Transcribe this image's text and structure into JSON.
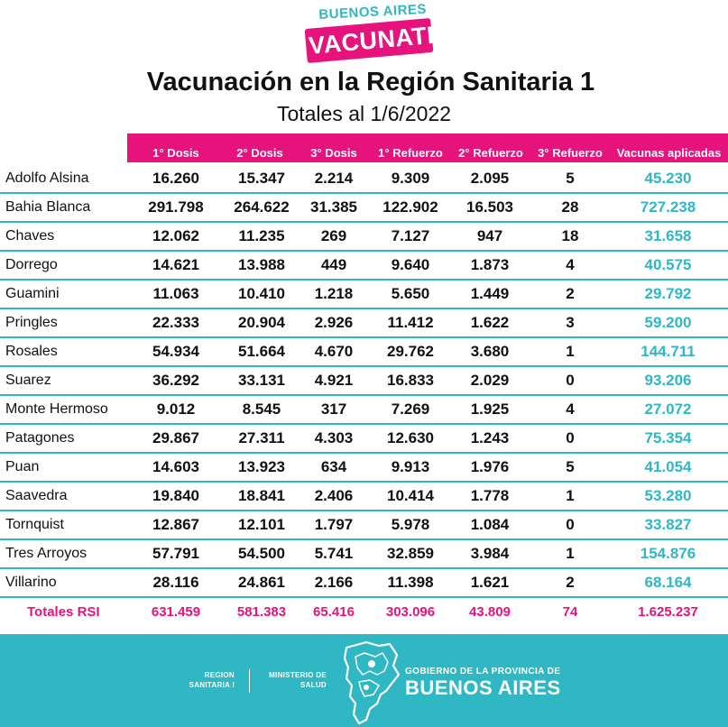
{
  "logo": {
    "top": "BUENOS AIRES",
    "main": "VACUNATE"
  },
  "title": "Vacunación en la Región Sanitaria 1",
  "subtitle": "Totales al  1/6/2022",
  "colors": {
    "accent_pink": "#e6137c",
    "accent_teal": "#2fb7c3"
  },
  "table": {
    "headers": [
      "1° Dosis",
      "2° Dosis",
      "3° Dosis",
      "1° Refuerzo",
      "2° Refuerzo",
      "3° Refuerzo",
      "Vacunas aplicadas"
    ],
    "rows": [
      {
        "name": "Adolfo Alsina",
        "d1": "16.260",
        "d2": "15.347",
        "d3": "2.214",
        "r1": "9.309",
        "r2": "2.095",
        "r3": "5",
        "total": "45.230"
      },
      {
        "name": "Bahia Blanca",
        "d1": "291.798",
        "d2": "264.622",
        "d3": "31.385",
        "r1": "122.902",
        "r2": "16.503",
        "r3": "28",
        "total": "727.238"
      },
      {
        "name": "Chaves",
        "d1": "12.062",
        "d2": "11.235",
        "d3": "269",
        "r1": "7.127",
        "r2": "947",
        "r3": "18",
        "total": "31.658"
      },
      {
        "name": "Dorrego",
        "d1": "14.621",
        "d2": "13.988",
        "d3": "449",
        "r1": "9.640",
        "r2": "1.873",
        "r3": "4",
        "total": "40.575"
      },
      {
        "name": "Guamini",
        "d1": "11.063",
        "d2": "10.410",
        "d3": "1.218",
        "r1": "5.650",
        "r2": "1.449",
        "r3": "2",
        "total": "29.792"
      },
      {
        "name": "Pringles",
        "d1": "22.333",
        "d2": "20.904",
        "d3": "2.926",
        "r1": "11.412",
        "r2": "1.622",
        "r3": "3",
        "total": "59.200"
      },
      {
        "name": "Rosales",
        "d1": "54.934",
        "d2": "51.664",
        "d3": "4.670",
        "r1": "29.762",
        "r2": "3.680",
        "r3": "1",
        "total": "144.711"
      },
      {
        "name": "Suarez",
        "d1": "36.292",
        "d2": "33.131",
        "d3": "4.921",
        "r1": "16.833",
        "r2": "2.029",
        "r3": "0",
        "total": "93.206"
      },
      {
        "name": "Monte Hermoso",
        "d1": "9.012",
        "d2": "8.545",
        "d3": "317",
        "r1": "7.269",
        "r2": "1.925",
        "r3": "4",
        "total": "27.072"
      },
      {
        "name": "Patagones",
        "d1": "29.867",
        "d2": "27.311",
        "d3": "4.303",
        "r1": "12.630",
        "r2": "1.243",
        "r3": "0",
        "total": "75.354"
      },
      {
        "name": "Puan",
        "d1": "14.603",
        "d2": "13.923",
        "d3": "634",
        "r1": "9.913",
        "r2": "1.976",
        "r3": "5",
        "total": "41.054"
      },
      {
        "name": "Saavedra",
        "d1": "19.840",
        "d2": "18.841",
        "d3": "2.406",
        "r1": "10.414",
        "r2": "1.778",
        "r3": "1",
        "total": "53.280"
      },
      {
        "name": "Tornquist",
        "d1": "12.867",
        "d2": "12.101",
        "d3": "1.797",
        "r1": "5.978",
        "r2": "1.084",
        "r3": "0",
        "total": "33.827"
      },
      {
        "name": "Tres Arroyos",
        "d1": "57.791",
        "d2": "54.500",
        "d3": "5.741",
        "r1": "32.859",
        "r2": "3.984",
        "r3": "1",
        "total": "154.876"
      },
      {
        "name": "Villarino",
        "d1": "28.116",
        "d2": "24.861",
        "d3": "2.166",
        "r1": "11.398",
        "r2": "1.621",
        "r3": "2",
        "total": "68.164"
      }
    ],
    "totals": {
      "name": "Totales RSI",
      "d1": "631.459",
      "d2": "581.383",
      "d3": "65.416",
      "r1": "303.096",
      "r2": "43.809",
      "r3": "74",
      "total": "1.625.237"
    }
  },
  "footer": {
    "region_line1": "REGION",
    "region_line2": "SANITARIA I",
    "ministry_line1": "MINISTERIO DE",
    "ministry_line2": "SALUD",
    "map_icon": "buenos-aires-province-map-icon",
    "gov_line1": "GOBIERNO DE LA PROVINCIA DE",
    "gov_line2": "BUENOS AIRES"
  }
}
